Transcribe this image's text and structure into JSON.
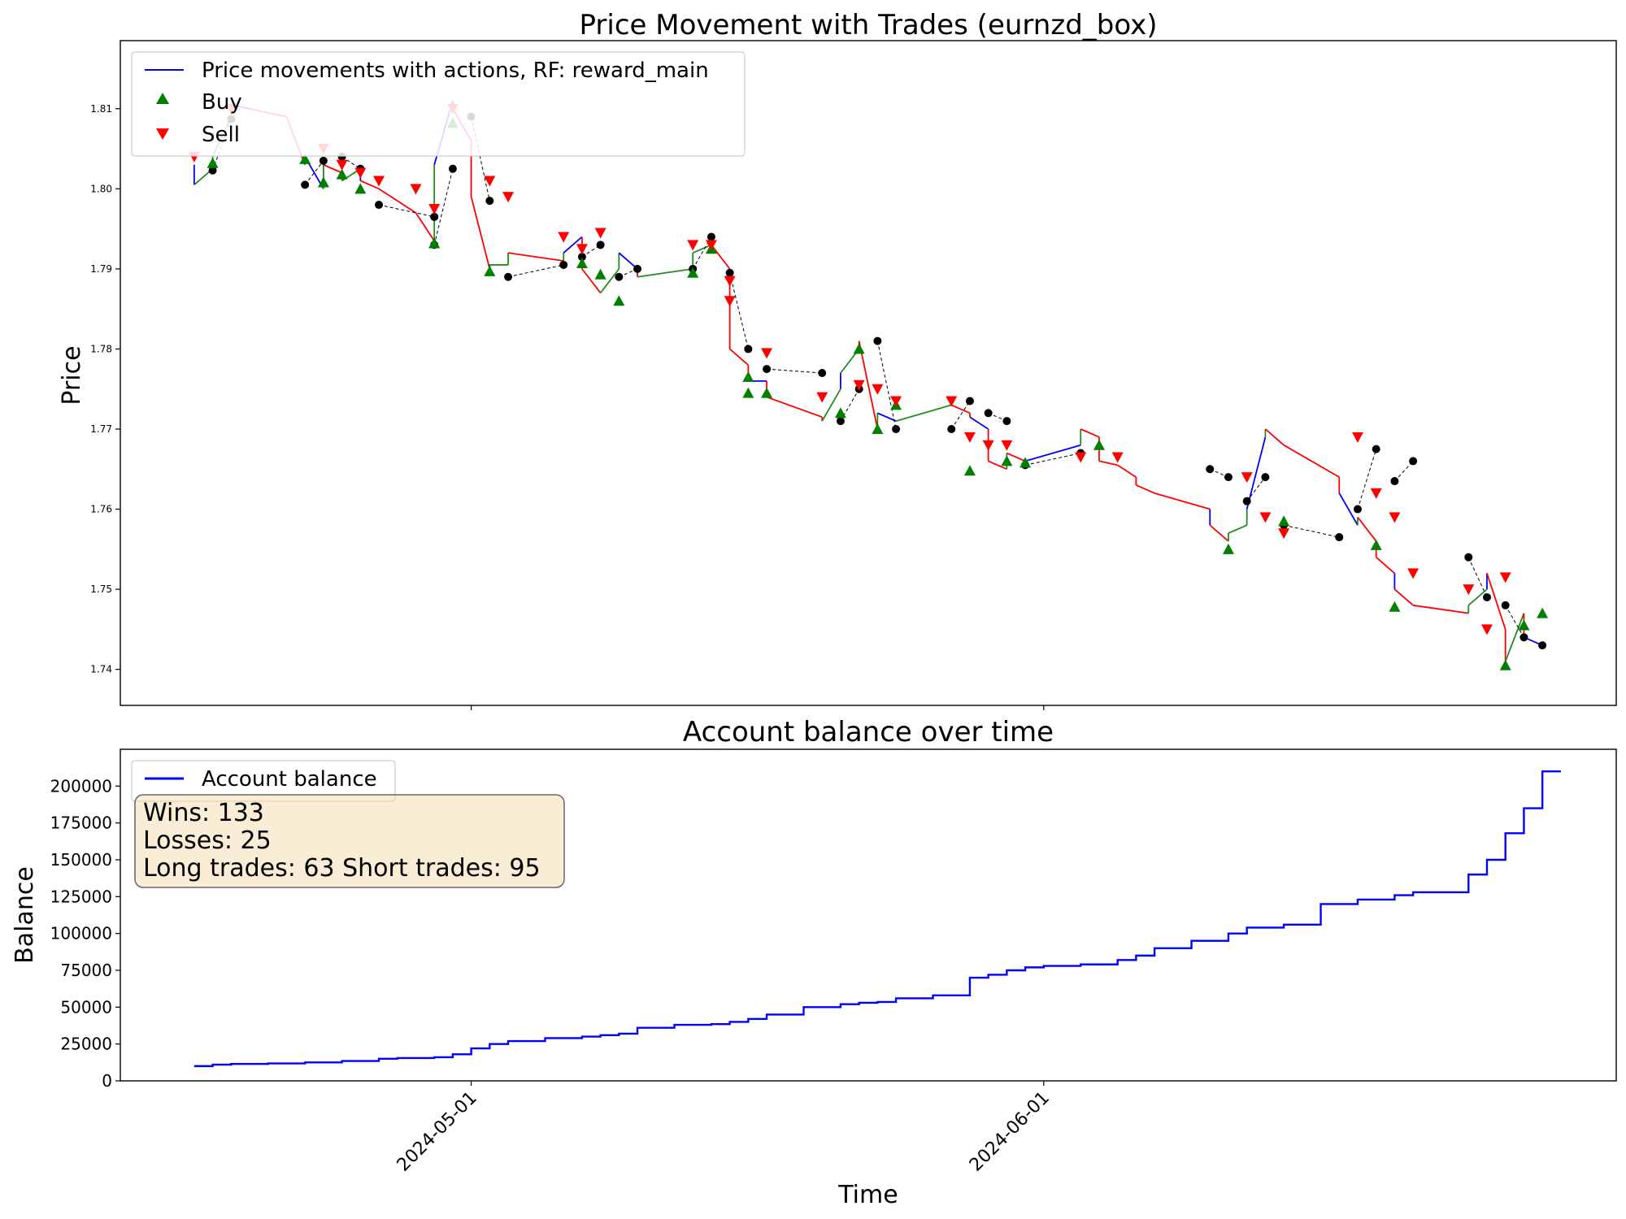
{
  "colors": {
    "price_line": "#0000ff",
    "buy_segment": "#228b22",
    "sell_segment": "#ff0000",
    "buy_marker": "#008000",
    "sell_marker": "#ff0000",
    "close_marker": "#000000",
    "balance_line": "#0000ff",
    "stats_box_fill": "#f5deb3"
  },
  "chart_data": [
    {
      "type": "line",
      "title": "Price Movement with Trades (eurnzd_box)",
      "xlabel": "",
      "ylabel": "Price",
      "xlim": [
        "2024-04-12",
        "2024-07-02"
      ],
      "ylim": [
        1.7355,
        1.8185
      ],
      "y_ticks": [
        1.74,
        1.75,
        1.76,
        1.77,
        1.78,
        1.79,
        1.8,
        1.81
      ],
      "y_tick_labels": [
        "1.74",
        "1.75",
        "1.76",
        "1.77",
        "1.78",
        "1.79",
        "1.80",
        "1.81"
      ],
      "x_ticks": [
        "2024-05-01",
        "2024-06-01"
      ],
      "grid": false,
      "legend": {
        "placement": "top-left",
        "entries": [
          "Price movements with actions, RF: reward_main",
          "Buy",
          "Sell"
        ]
      },
      "series": [
        {
          "name": "Price movements with actions, RF: reward_main",
          "x": [
            "2024-04-16",
            "2024-04-16",
            "2024-04-17",
            "2024-04-17",
            "2024-04-18",
            "2024-04-18",
            "2024-04-19",
            "2024-04-20",
            "2024-04-21",
            "2024-04-22",
            "2024-04-22",
            "2024-04-23",
            "2024-04-23",
            "2024-04-24",
            "2024-04-24",
            "2024-04-25",
            "2024-04-25",
            "2024-04-26",
            "2024-04-28",
            "2024-04-29",
            "2024-04-29",
            "2024-04-30",
            "2024-04-30",
            "2024-05-01",
            "2024-05-01",
            "2024-05-02",
            "2024-05-02",
            "2024-05-03",
            "2024-05-03",
            "2024-05-06",
            "2024-05-06",
            "2024-05-07",
            "2024-05-07",
            "2024-05-08",
            "2024-05-09",
            "2024-05-09",
            "2024-05-10",
            "2024-05-10",
            "2024-05-13",
            "2024-05-13",
            "2024-05-14",
            "2024-05-14",
            "2024-05-15",
            "2024-05-15",
            "2024-05-16",
            "2024-05-16",
            "2024-05-17",
            "2024-05-17",
            "2024-05-20",
            "2024-05-20",
            "2024-05-21",
            "2024-05-21",
            "2024-05-22",
            "2024-05-22",
            "2024-05-23",
            "2024-05-23",
            "2024-05-24",
            "2024-05-27",
            "2024-05-27",
            "2024-05-28",
            "2024-05-28",
            "2024-05-29",
            "2024-05-29",
            "2024-05-30",
            "2024-05-30",
            "2024-05-31",
            "2024-06-03",
            "2024-06-03",
            "2024-06-04",
            "2024-06-04",
            "2024-06-05",
            "2024-06-05",
            "2024-06-06",
            "2024-06-06",
            "2024-06-07",
            "2024-06-10",
            "2024-06-10",
            "2024-06-11",
            "2024-06-11",
            "2024-06-12",
            "2024-06-12",
            "2024-06-13",
            "2024-06-13",
            "2024-06-14",
            "2024-06-17",
            "2024-06-17",
            "2024-06-18",
            "2024-06-18",
            "2024-06-19",
            "2024-06-19",
            "2024-06-20",
            "2024-06-20",
            "2024-06-21",
            "2024-06-24",
            "2024-06-24",
            "2024-06-25",
            "2024-06-25",
            "2024-06-26",
            "2024-06-26",
            "2024-06-27",
            "2024-06-27",
            "2024-06-28"
          ],
          "y": [
            1.803,
            1.8005,
            1.8025,
            1.804,
            1.809,
            1.8105,
            1.81,
            1.8095,
            1.809,
            1.803,
            1.804,
            1.8,
            1.803,
            1.802,
            1.801,
            1.8025,
            1.801,
            1.8,
            1.797,
            1.7935,
            1.803,
            1.811,
            1.81,
            1.806,
            1.799,
            1.79,
            1.7905,
            1.7905,
            1.792,
            1.791,
            1.792,
            1.794,
            1.79,
            1.787,
            1.79,
            1.792,
            1.79,
            1.789,
            1.79,
            1.792,
            1.793,
            1.793,
            1.79,
            1.78,
            1.778,
            1.776,
            1.776,
            1.774,
            1.7715,
            1.771,
            1.775,
            1.777,
            1.78,
            1.781,
            1.77,
            1.772,
            1.771,
            1.773,
            1.773,
            1.772,
            1.7715,
            1.77,
            1.766,
            1.765,
            1.767,
            1.766,
            1.768,
            1.77,
            1.769,
            1.766,
            1.7655,
            1.7655,
            1.764,
            1.763,
            1.762,
            1.76,
            1.758,
            1.756,
            1.757,
            1.758,
            1.76,
            1.769,
            1.77,
            1.768,
            1.764,
            1.762,
            1.758,
            1.759,
            1.756,
            1.754,
            1.752,
            1.75,
            1.748,
            1.747,
            1.748,
            1.75,
            1.752,
            1.745,
            1.741,
            1.747,
            1.744,
            1.743
          ]
        }
      ],
      "buy_markers": {
        "name": "Buy",
        "x": [
          "2024-04-17",
          "2024-04-22",
          "2024-04-23",
          "2024-04-24",
          "2024-04-25",
          "2024-04-29",
          "2024-04-29",
          "2024-04-30",
          "2024-05-02",
          "2024-05-07",
          "2024-05-08",
          "2024-05-09",
          "2024-05-13",
          "2024-05-14",
          "2024-05-16",
          "2024-05-16",
          "2024-05-17",
          "2024-05-21",
          "2024-05-22",
          "2024-05-23",
          "2024-05-24",
          "2024-05-28",
          "2024-05-30",
          "2024-05-31",
          "2024-06-04",
          "2024-06-11",
          "2024-06-14",
          "2024-06-19",
          "2024-06-20",
          "2024-06-26",
          "2024-06-27",
          "2024-06-28"
        ],
        "y": [
          1.8032,
          1.8037,
          1.8008,
          1.8018,
          1.8,
          1.7932,
          1.7932,
          1.8082,
          1.7897,
          1.7907,
          1.7893,
          1.786,
          1.7895,
          1.7925,
          1.7765,
          1.7745,
          1.7745,
          1.772,
          1.78,
          1.77,
          1.773,
          1.7648,
          1.766,
          1.7658,
          1.768,
          1.755,
          1.7585,
          1.7555,
          1.7478,
          1.7405,
          1.7455,
          1.747
        ]
      },
      "sell_markers": {
        "name": "Sell",
        "x": [
          "2024-04-16",
          "2024-04-18",
          "2024-04-23",
          "2024-04-24",
          "2024-04-25",
          "2024-04-26",
          "2024-04-28",
          "2024-04-29",
          "2024-04-30",
          "2024-05-02",
          "2024-05-03",
          "2024-05-06",
          "2024-05-07",
          "2024-05-08",
          "2024-05-13",
          "2024-05-14",
          "2024-05-15",
          "2024-05-15",
          "2024-05-17",
          "2024-05-20",
          "2024-05-22",
          "2024-05-23",
          "2024-05-24",
          "2024-05-27",
          "2024-05-28",
          "2024-05-29",
          "2024-05-30",
          "2024-06-03",
          "2024-06-05",
          "2024-06-12",
          "2024-06-13",
          "2024-06-14",
          "2024-06-18",
          "2024-06-19",
          "2024-06-20",
          "2024-06-21",
          "2024-06-24",
          "2024-06-25",
          "2024-06-26"
        ],
        "y": [
          1.804,
          1.81,
          1.805,
          1.803,
          1.802,
          1.801,
          1.8,
          1.7975,
          1.81,
          1.801,
          1.799,
          1.794,
          1.7925,
          1.7945,
          1.793,
          1.793,
          1.7885,
          1.786,
          1.7795,
          1.774,
          1.7755,
          1.775,
          1.7735,
          1.7735,
          1.769,
          1.768,
          1.768,
          1.7665,
          1.7665,
          1.764,
          1.759,
          1.757,
          1.769,
          1.762,
          1.759,
          1.752,
          1.75,
          1.745,
          1.7515
        ]
      },
      "close_markers": {
        "x": [
          "2024-04-17",
          "2024-04-18",
          "2024-04-22",
          "2024-04-23",
          "2024-04-24",
          "2024-04-25",
          "2024-04-26",
          "2024-04-29",
          "2024-04-29",
          "2024-04-30",
          "2024-05-01",
          "2024-05-02",
          "2024-05-03",
          "2024-05-06",
          "2024-05-07",
          "2024-05-08",
          "2024-05-09",
          "2024-05-10",
          "2024-05-13",
          "2024-05-14",
          "2024-05-15",
          "2024-05-16",
          "2024-05-17",
          "2024-05-20",
          "2024-05-21",
          "2024-05-22",
          "2024-05-23",
          "2024-05-24",
          "2024-05-27",
          "2024-05-28",
          "2024-05-29",
          "2024-05-30",
          "2024-05-31",
          "2024-06-03",
          "2024-06-10",
          "2024-06-11",
          "2024-06-12",
          "2024-06-13",
          "2024-06-14",
          "2024-06-17",
          "2024-06-18",
          "2024-06-19",
          "2024-06-20",
          "2024-06-21",
          "2024-06-24",
          "2024-06-25",
          "2024-06-26",
          "2024-06-27",
          "2024-06-28"
        ],
        "y": [
          1.8023,
          1.8087,
          1.8005,
          1.8035,
          1.804,
          1.8025,
          1.798,
          1.7965,
          1.793,
          1.8025,
          1.809,
          1.7985,
          1.789,
          1.7905,
          1.7915,
          1.793,
          1.789,
          1.79,
          1.79,
          1.794,
          1.7895,
          1.78,
          1.7775,
          1.777,
          1.771,
          1.775,
          1.781,
          1.77,
          1.77,
          1.7735,
          1.772,
          1.771,
          1.7655,
          1.767,
          1.765,
          1.764,
          1.761,
          1.764,
          1.758,
          1.7565,
          1.76,
          1.7675,
          1.7635,
          1.766,
          1.754,
          1.749,
          1.748,
          1.744,
          1.743
        ]
      }
    },
    {
      "type": "line",
      "title": "Account balance over time",
      "xlabel": "Time",
      "ylabel": "Balance",
      "xlim": [
        "2024-04-12",
        "2024-07-02"
      ],
      "ylim": [
        0,
        225000
      ],
      "y_ticks": [
        0,
        25000,
        50000,
        75000,
        100000,
        125000,
        150000,
        175000,
        200000
      ],
      "y_tick_labels": [
        "0",
        "25000",
        "50000",
        "75000",
        "100000",
        "125000",
        "150000",
        "175000",
        "200000"
      ],
      "x_ticks": [
        "2024-05-01",
        "2024-06-01"
      ],
      "x_tick_labels": [
        "2024-05-01",
        "2024-06-01"
      ],
      "grid": false,
      "legend": {
        "placement": "top-left",
        "entries": [
          "Account balance"
        ]
      },
      "series": [
        {
          "name": "Account balance",
          "x": [
            "2024-04-16",
            "2024-04-17",
            "2024-04-18",
            "2024-04-20",
            "2024-04-22",
            "2024-04-24",
            "2024-04-26",
            "2024-04-27",
            "2024-04-29",
            "2024-04-30",
            "2024-05-01",
            "2024-05-02",
            "2024-05-03",
            "2024-05-05",
            "2024-05-07",
            "2024-05-08",
            "2024-05-09",
            "2024-05-10",
            "2024-05-12",
            "2024-05-14",
            "2024-05-15",
            "2024-05-16",
            "2024-05-17",
            "2024-05-19",
            "2024-05-21",
            "2024-05-22",
            "2024-05-23",
            "2024-05-24",
            "2024-05-26",
            "2024-05-28",
            "2024-05-29",
            "2024-05-30",
            "2024-05-31",
            "2024-06-01",
            "2024-06-03",
            "2024-06-05",
            "2024-06-06",
            "2024-06-07",
            "2024-06-09",
            "2024-06-11",
            "2024-06-12",
            "2024-06-14",
            "2024-06-16",
            "2024-06-18",
            "2024-06-20",
            "2024-06-21",
            "2024-06-23",
            "2024-06-24",
            "2024-06-25",
            "2024-06-26",
            "2024-06-27",
            "2024-06-28"
          ],
          "y": [
            10000,
            11000,
            11500,
            11800,
            12500,
            13500,
            15000,
            15500,
            16000,
            18000,
            22000,
            25000,
            27000,
            29000,
            30000,
            31000,
            32000,
            36000,
            38000,
            38500,
            40000,
            42000,
            45000,
            50000,
            52000,
            53000,
            53500,
            56000,
            58000,
            70000,
            72000,
            75000,
            77000,
            78000,
            79000,
            82000,
            85000,
            90000,
            95000,
            100000,
            104000,
            106000,
            120000,
            123000,
            126000,
            128000,
            128000,
            140000,
            150000,
            168000,
            185000,
            210000
          ]
        }
      ],
      "stats": {
        "wins": "Wins: 133",
        "losses": "Losses: 25",
        "trades": "Long trades: 63 Short trades: 95"
      }
    }
  ]
}
